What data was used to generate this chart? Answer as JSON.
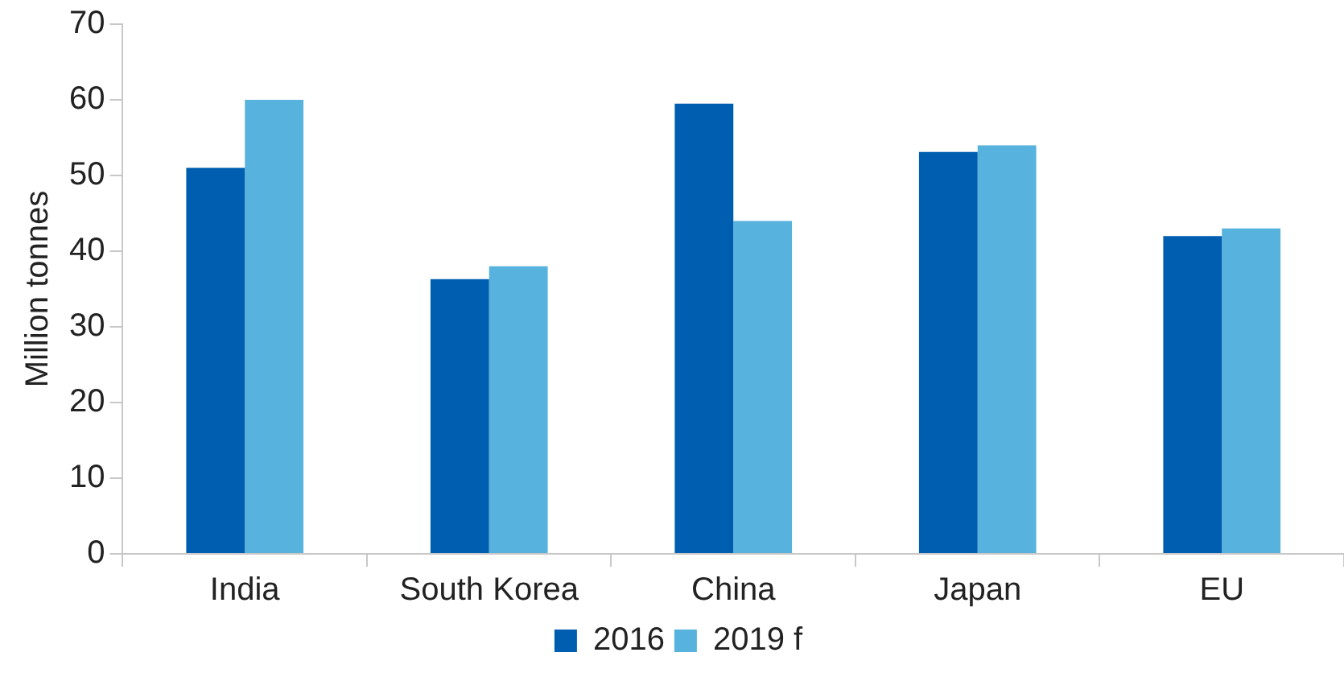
{
  "chart_data": {
    "type": "bar",
    "ylabel": "Million tonnes",
    "categories": [
      "India",
      "South Korea",
      "China",
      "Japan",
      "EU"
    ],
    "series": [
      {
        "name": "2016",
        "color": "#005eb0",
        "values": [
          51,
          36.3,
          59.5,
          53.1,
          42
        ]
      },
      {
        "name": "2019 f",
        "color": "#58b2de",
        "values": [
          60,
          38,
          44,
          54,
          43
        ]
      }
    ],
    "ylim": [
      0,
      70
    ],
    "yticks": [
      0,
      10,
      20,
      30,
      40,
      50,
      60,
      70
    ],
    "grid": false,
    "legend": "bottom"
  }
}
